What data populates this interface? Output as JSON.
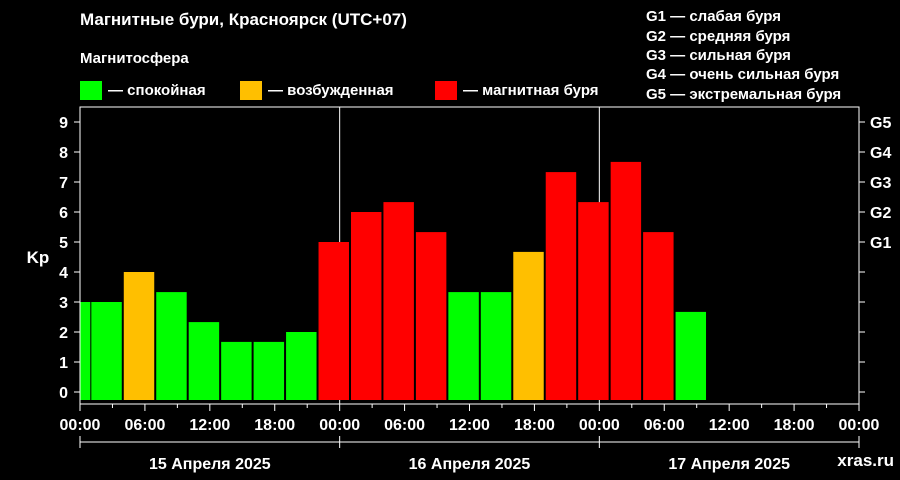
{
  "title": "Магнитные бури, Красноярск (UTC+07)",
  "legend": {
    "title": "Магнитосфера",
    "items": [
      {
        "color": "#00ff00",
        "label": "— спокойная"
      },
      {
        "color": "#ffbf00",
        "label": "— возбужденная"
      },
      {
        "color": "#ff0000",
        "label": "— магнитная буря"
      }
    ]
  },
  "g_scale": [
    "G1 — слабая буря",
    "G2 — средняя буря",
    "G3 — сильная буря",
    "G4 — очень сильная буря",
    "G5 — экстремальная буря"
  ],
  "watermark": "xras.ru",
  "chart_data": {
    "type": "bar",
    "ylabel": "Kp",
    "ylim": [
      0,
      9
    ],
    "yticks": [
      "0",
      "1",
      "2",
      "3",
      "4",
      "5",
      "6",
      "7",
      "8",
      "9"
    ],
    "right_ticks": [
      {
        "label": "G1",
        "value": 5
      },
      {
        "label": "G2",
        "value": 6
      },
      {
        "label": "G3",
        "value": 7
      },
      {
        "label": "G4",
        "value": 8
      },
      {
        "label": "G5",
        "value": 9
      }
    ],
    "xticks": [
      "00:00",
      "06:00",
      "12:00",
      "18:00",
      "00:00",
      "06:00",
      "12:00",
      "18:00",
      "00:00",
      "06:00",
      "12:00",
      "18:00",
      "00:00"
    ],
    "days": [
      "15 Апреля 2025",
      "16 Апреля 2025",
      "17 Апреля 2025"
    ],
    "interval_hours": 3,
    "start": "15 Апреля 2025 00:00",
    "bars": [
      {
        "start_hour": 0,
        "kp": 3.0,
        "status": "quiet",
        "partial": true
      },
      {
        "start_hour": 1,
        "kp": 3.0,
        "status": "quiet"
      },
      {
        "start_hour": 4,
        "kp": 4.0,
        "status": "active"
      },
      {
        "start_hour": 7,
        "kp": 3.33,
        "status": "quiet"
      },
      {
        "start_hour": 10,
        "kp": 2.33,
        "status": "quiet"
      },
      {
        "start_hour": 13,
        "kp": 1.67,
        "status": "quiet"
      },
      {
        "start_hour": 16,
        "kp": 1.67,
        "status": "quiet"
      },
      {
        "start_hour": 19,
        "kp": 2.0,
        "status": "quiet"
      },
      {
        "start_hour": 22,
        "kp": 5.0,
        "status": "storm"
      },
      {
        "start_hour": 25,
        "kp": 6.0,
        "status": "storm"
      },
      {
        "start_hour": 28,
        "kp": 6.33,
        "status": "storm"
      },
      {
        "start_hour": 31,
        "kp": 5.33,
        "status": "storm"
      },
      {
        "start_hour": 34,
        "kp": 3.33,
        "status": "quiet"
      },
      {
        "start_hour": 37,
        "kp": 3.33,
        "status": "quiet"
      },
      {
        "start_hour": 40,
        "kp": 4.67,
        "status": "active"
      },
      {
        "start_hour": 43,
        "kp": 7.33,
        "status": "storm"
      },
      {
        "start_hour": 46,
        "kp": 6.33,
        "status": "storm"
      },
      {
        "start_hour": 49,
        "kp": 7.67,
        "status": "storm"
      },
      {
        "start_hour": 52,
        "kp": 5.33,
        "status": "storm"
      },
      {
        "start_hour": 55,
        "kp": 2.67,
        "status": "quiet"
      }
    ],
    "status_colors": {
      "quiet": "#00ff00",
      "active": "#ffbf00",
      "storm": "#ff0000"
    },
    "grid": "vertical day separators"
  }
}
